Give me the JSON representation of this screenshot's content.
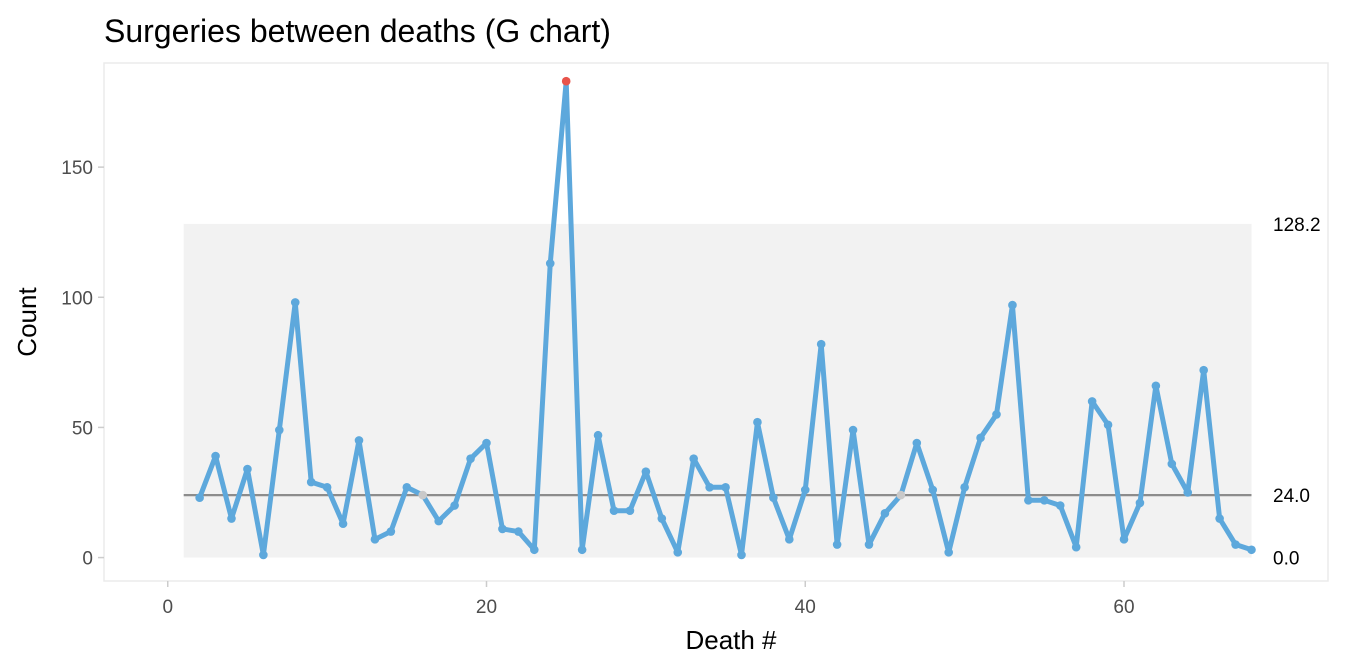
{
  "chart_data": {
    "type": "line",
    "title": "Surgeries between deaths (G chart)",
    "xlabel": "Death #",
    "ylabel": "Count",
    "xlim": [
      -4,
      72.8
    ],
    "ylim": [
      -9,
      190
    ],
    "x_ticks": [
      0,
      20,
      40,
      60
    ],
    "y_ticks": [
      0,
      50,
      100,
      150
    ],
    "grid": false,
    "control_band": {
      "lower": 0,
      "upper": 128.2,
      "x_start": 1,
      "x_end": 68
    },
    "center_line": {
      "value": 24,
      "x_start": 1,
      "x_end": 68
    },
    "limit_labels": [
      "128.2",
      "24.0",
      "0.0"
    ],
    "colors": {
      "line": "#5da8dc",
      "point": "#5da8dc",
      "special_cause": "#e8534a",
      "center_point": "#c9c9c9",
      "band": "#f2f2f2",
      "center_line": "#8c8c8c",
      "panel_border": "#ebebeb"
    },
    "series": [
      {
        "x": [
          2,
          3,
          4,
          5,
          6,
          7,
          8,
          9,
          10,
          11,
          12,
          13,
          14,
          15,
          16,
          17,
          18,
          19,
          20,
          21,
          22,
          23,
          24,
          25,
          26,
          27,
          28,
          29,
          30,
          31,
          32,
          33,
          34,
          35,
          36,
          37,
          38,
          39,
          40,
          41,
          42,
          43,
          44,
          45,
          46,
          47,
          48,
          49,
          50,
          51,
          52,
          53,
          54,
          55,
          56,
          57,
          58,
          59,
          60,
          61,
          62,
          63,
          64,
          65,
          66,
          67,
          68
        ],
        "values": [
          23,
          39,
          15,
          34,
          1,
          49,
          98,
          29,
          27,
          13,
          45,
          7,
          10,
          27,
          24,
          14,
          20,
          38,
          44,
          11,
          10,
          3,
          113,
          183,
          3,
          47,
          18,
          18,
          33,
          15,
          2,
          38,
          27,
          27,
          1,
          52,
          23,
          7,
          26,
          82,
          5,
          49,
          5,
          17,
          24,
          44,
          26,
          2,
          27,
          46,
          55,
          97,
          22,
          22,
          20,
          4,
          60,
          51,
          7,
          21,
          66,
          36,
          25,
          72,
          15,
          5,
          3
        ]
      }
    ],
    "special_cause_points": [
      25
    ],
    "on_center_points": [
      16,
      46
    ]
  }
}
